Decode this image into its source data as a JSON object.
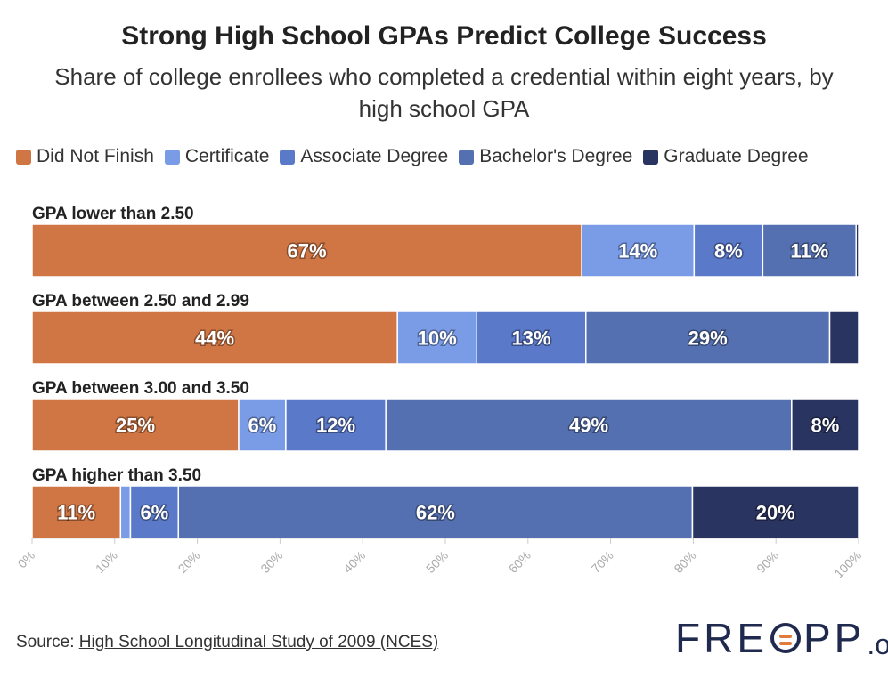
{
  "chart_data": {
    "type": "bar",
    "orientation": "horizontal-stacked",
    "title": "Strong High School GPAs Predict College Success",
    "subtitle": "Share of college enrollees who completed a credential within eight years, by high school GPA",
    "categories": [
      "GPA lower than 2.50",
      "GPA between 2.50 and 2.99",
      "GPA between 3.00 and 3.50",
      "GPA higher than 3.50"
    ],
    "series": [
      {
        "name": "Did Not Finish",
        "color": "#d07644",
        "values": [
          66.5,
          44.2,
          25.0,
          10.7
        ],
        "labels": [
          "67%",
          "44%",
          "25%",
          "11%"
        ]
      },
      {
        "name": "Certificate",
        "color": "#7a9be6",
        "values": [
          13.6,
          9.6,
          5.7,
          1.2
        ],
        "labels": [
          "14%",
          "10%",
          "6%",
          ""
        ]
      },
      {
        "name": "Associate Degree",
        "color": "#5b79c9",
        "values": [
          8.3,
          13.2,
          12.1,
          5.8
        ],
        "labels": [
          "8%",
          "13%",
          "12%",
          "6%"
        ]
      },
      {
        "name": "Bachelor's Degree",
        "color": "#5570b0",
        "values": [
          11.3,
          29.5,
          49.1,
          62.2
        ],
        "labels": [
          "11%",
          "29%",
          "49%",
          "62%"
        ]
      },
      {
        "name": "Graduate Degree",
        "color": "#2a3461",
        "values": [
          0.3,
          3.5,
          8.1,
          20.1
        ],
        "labels": [
          "",
          "",
          "8%",
          "20%"
        ]
      }
    ],
    "xlim": [
      0,
      100
    ],
    "xticks": [
      "0%",
      "10%",
      "20%",
      "30%",
      "40%",
      "50%",
      "60%",
      "70%",
      "80%",
      "90%",
      "100%"
    ],
    "legend": "top-left"
  },
  "source": {
    "prefix": "Source: ",
    "link_text": "High School Longitudinal Study of 2009 (NCES)"
  },
  "logo": {
    "left": "FRE",
    "right": "PP",
    "suffix": ".org"
  }
}
